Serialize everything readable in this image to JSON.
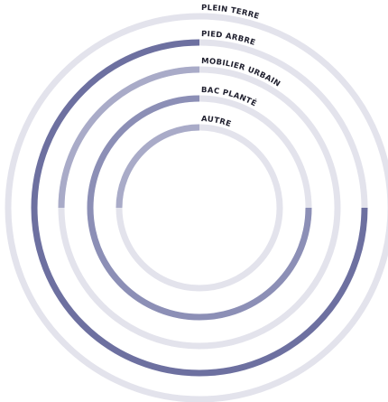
{
  "chart_data": {
    "type": "radial_bar",
    "max": 100,
    "start": "top",
    "direction": "counter-clockwise",
    "colors": {
      "track": "#e3e3ec",
      "bar_light": "#a9abc8",
      "bar_medium": "#8c8fb6",
      "bar_dark": "#6d70a0"
    },
    "series": [
      {
        "name": "PLEIN TERRE",
        "value": 0,
        "color": "#a9abc8"
      },
      {
        "name": "PIED ARBRE",
        "value": 75,
        "color": "#6d70a0"
      },
      {
        "name": "MOBILIER URBAIN",
        "value": 25,
        "color": "#a9abc8"
      },
      {
        "name": "BAC PLANTÉ",
        "value": 75,
        "color": "#8c8fb6"
      },
      {
        "name": "AUTRE",
        "value": 25,
        "color": "#a9abc8"
      }
    ]
  }
}
